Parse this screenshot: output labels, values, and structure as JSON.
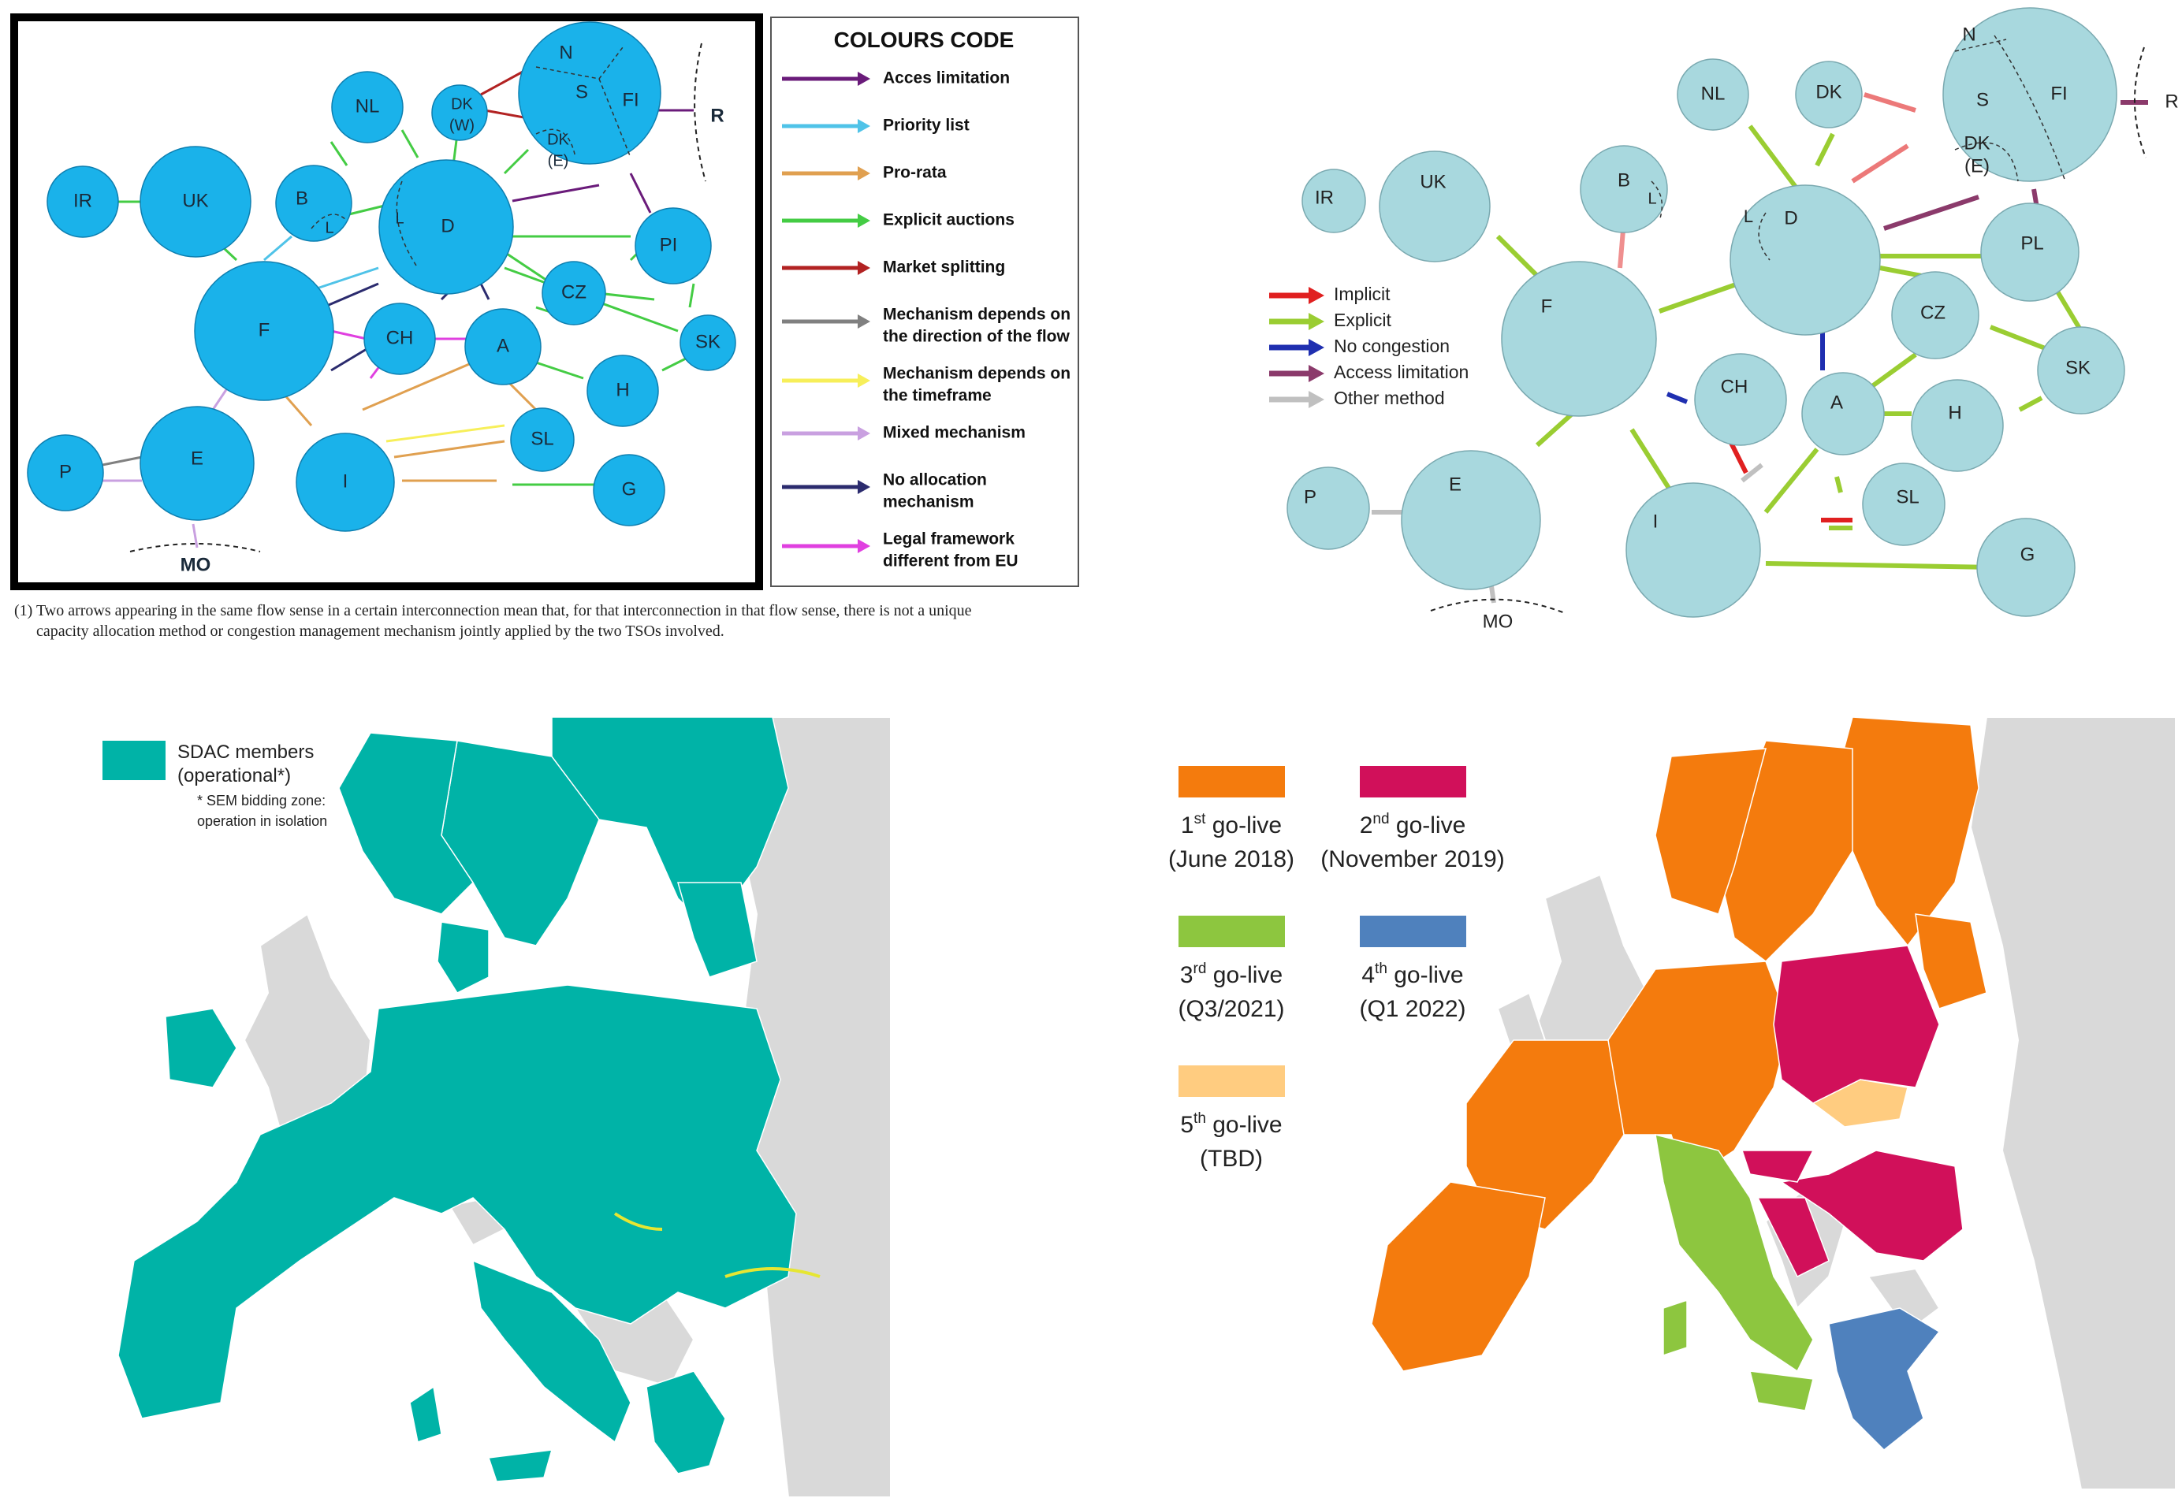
{
  "diagram1": {
    "legend_title": "COLOURS CODE",
    "legend": [
      {
        "lines": [
          "Acces limitation"
        ],
        "color": "#6a1b7a"
      },
      {
        "lines": [
          "Priority list"
        ],
        "color": "#4fc3e8"
      },
      {
        "lines": [
          "Pro-rata"
        ],
        "color": "#e0a050"
      },
      {
        "lines": [
          "Explicit auctions"
        ],
        "color": "#44cc44"
      },
      {
        "lines": [
          "Market splitting"
        ],
        "color": "#b22222"
      },
      {
        "lines": [
          "Mechanism depends on",
          "the direction of the flow"
        ],
        "color": "#808080"
      },
      {
        "lines": [
          "Mechanism depends on",
          "the timeframe"
        ],
        "color": "#f7ef5a"
      },
      {
        "lines": [
          "Mixed mechanism"
        ],
        "color": "#c9a0e0"
      },
      {
        "lines": [
          "No allocation",
          "mechanism"
        ],
        "color": "#2b2b6e"
      },
      {
        "lines": [
          "Legal framework",
          "different from EU"
        ],
        "color": "#e040e0"
      }
    ],
    "nodes": {
      "IR": "IR",
      "UK": "UK",
      "NL": "NL",
      "DKW_1": "DK",
      "DKW_2": "(W)",
      "N": "N",
      "S": "S",
      "FI": "FI",
      "DKE_1": "DK",
      "DKE_2": "(E)",
      "R": "R",
      "B": "B",
      "L1": "L",
      "L2": "L",
      "D": "D",
      "PI": "PI",
      "F": "F",
      "CH": "CH",
      "CZ": "CZ",
      "A": "A",
      "SK": "SK",
      "H": "H",
      "P": "P",
      "E": "E",
      "I": "I",
      "SL": "SL",
      "G": "G",
      "MO": "MO"
    }
  },
  "footnote": {
    "line1": "(1) Two arrows appearing in the same flow sense in a certain interconnection mean that, for that interconnection in that flow sense, there is not a unique",
    "line2": "capacity allocation method or congestion management mechanism jointly applied by the two TSOs involved."
  },
  "diagram2": {
    "legend": [
      {
        "label": "Implicit",
        "color": "#e02020"
      },
      {
        "label": "Explicit",
        "color": "#9acd32"
      },
      {
        "label": "No congestion",
        "color": "#1f2fb0"
      },
      {
        "label": "Access limitation",
        "color": "#8b3a6b"
      },
      {
        "label": "Other method",
        "color": "#c0c0c0"
      }
    ],
    "nodes": {
      "IR": "IR",
      "UK": "UK",
      "NL": "NL",
      "DK": "DK",
      "N": "N",
      "S": "S",
      "FI": "FI",
      "DKE_1": "DK",
      "DKE_2": "(E)",
      "R": "R",
      "B": "B",
      "L1": "L",
      "L2": "L",
      "D": "D",
      "PL": "PL",
      "F": "F",
      "CZ": "CZ",
      "SK": "SK",
      "CH": "CH",
      "A": "A",
      "H": "H",
      "P": "P",
      "E": "E",
      "SL": "SL",
      "I": "I",
      "G": "G",
      "MO": "MO"
    }
  },
  "map1": {
    "legend_label_1": "SDAC members",
    "legend_label_2": "(operational*)",
    "note_1": "* SEM bidding zone:",
    "note_2": "operation in isolation",
    "member_color": "#00b3a7"
  },
  "map2": {
    "legend": [
      {
        "line1": "1",
        "sup": "st",
        "line1b": " go-live",
        "line2": "(June 2018)",
        "color": "#f47b0d"
      },
      {
        "line1": "2",
        "sup": "nd",
        "line1b": " go-live",
        "line2": "(November 2019)",
        "color": "#d1105a"
      },
      {
        "line1": "3",
        "sup": "rd",
        "line1b": " go-live",
        "line2": "(Q3/2021)",
        "color": "#8dc63f"
      },
      {
        "line1": "4",
        "sup": "th",
        "line1b": " go-live",
        "line2": "(Q1 2022)",
        "color": "#4f81bd"
      },
      {
        "line1": "5",
        "sup": "th",
        "line1b": " go-live",
        "line2": "(TBD)",
        "color": "#ffcc80"
      }
    ]
  }
}
